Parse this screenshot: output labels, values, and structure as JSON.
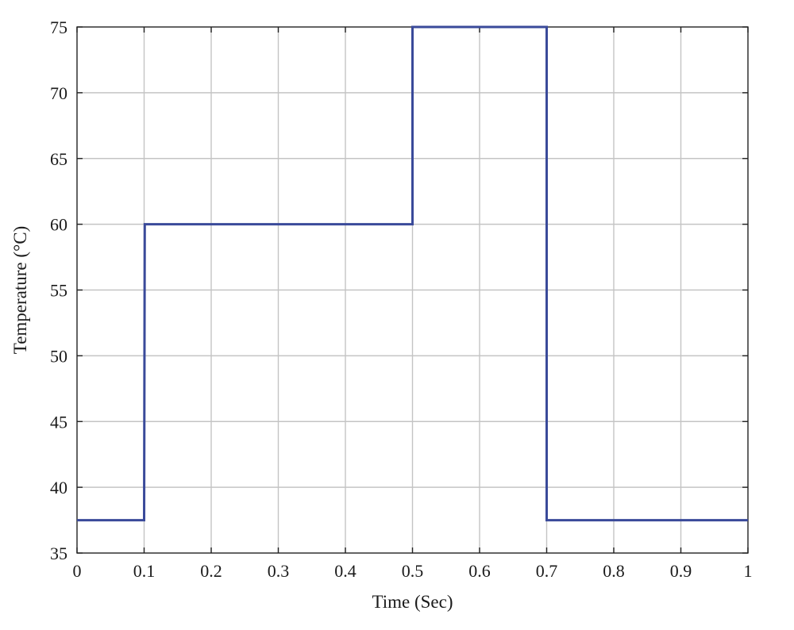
{
  "chart_data": {
    "type": "line",
    "title": "",
    "xlabel": "Time (Sec)",
    "ylabel": "Temperature (°C)",
    "xlim": [
      0,
      1
    ],
    "ylim": [
      35,
      75
    ],
    "xticks": [
      0,
      0.1,
      0.2,
      0.3,
      0.4,
      0.5,
      0.6,
      0.7,
      0.8,
      0.9,
      1
    ],
    "xtick_labels": [
      "0",
      "0.1",
      "0.2",
      "0.3",
      "0.4",
      "0.5",
      "0.6",
      "0.7",
      "0.8",
      "0.9",
      "1"
    ],
    "yticks": [
      35,
      40,
      45,
      50,
      55,
      60,
      65,
      70,
      75
    ],
    "ytick_labels": [
      "35",
      "40",
      "45",
      "50",
      "55",
      "60",
      "65",
      "70",
      "75"
    ],
    "grid": true,
    "series": [
      {
        "color": "#3a4a9a",
        "x": [
          0,
          0.1,
          0.101,
          0.5,
          0.5,
          0.7,
          0.7,
          1
        ],
        "y": [
          37.5,
          37.5,
          60,
          60,
          75,
          75,
          37.5,
          37.5
        ]
      }
    ]
  }
}
